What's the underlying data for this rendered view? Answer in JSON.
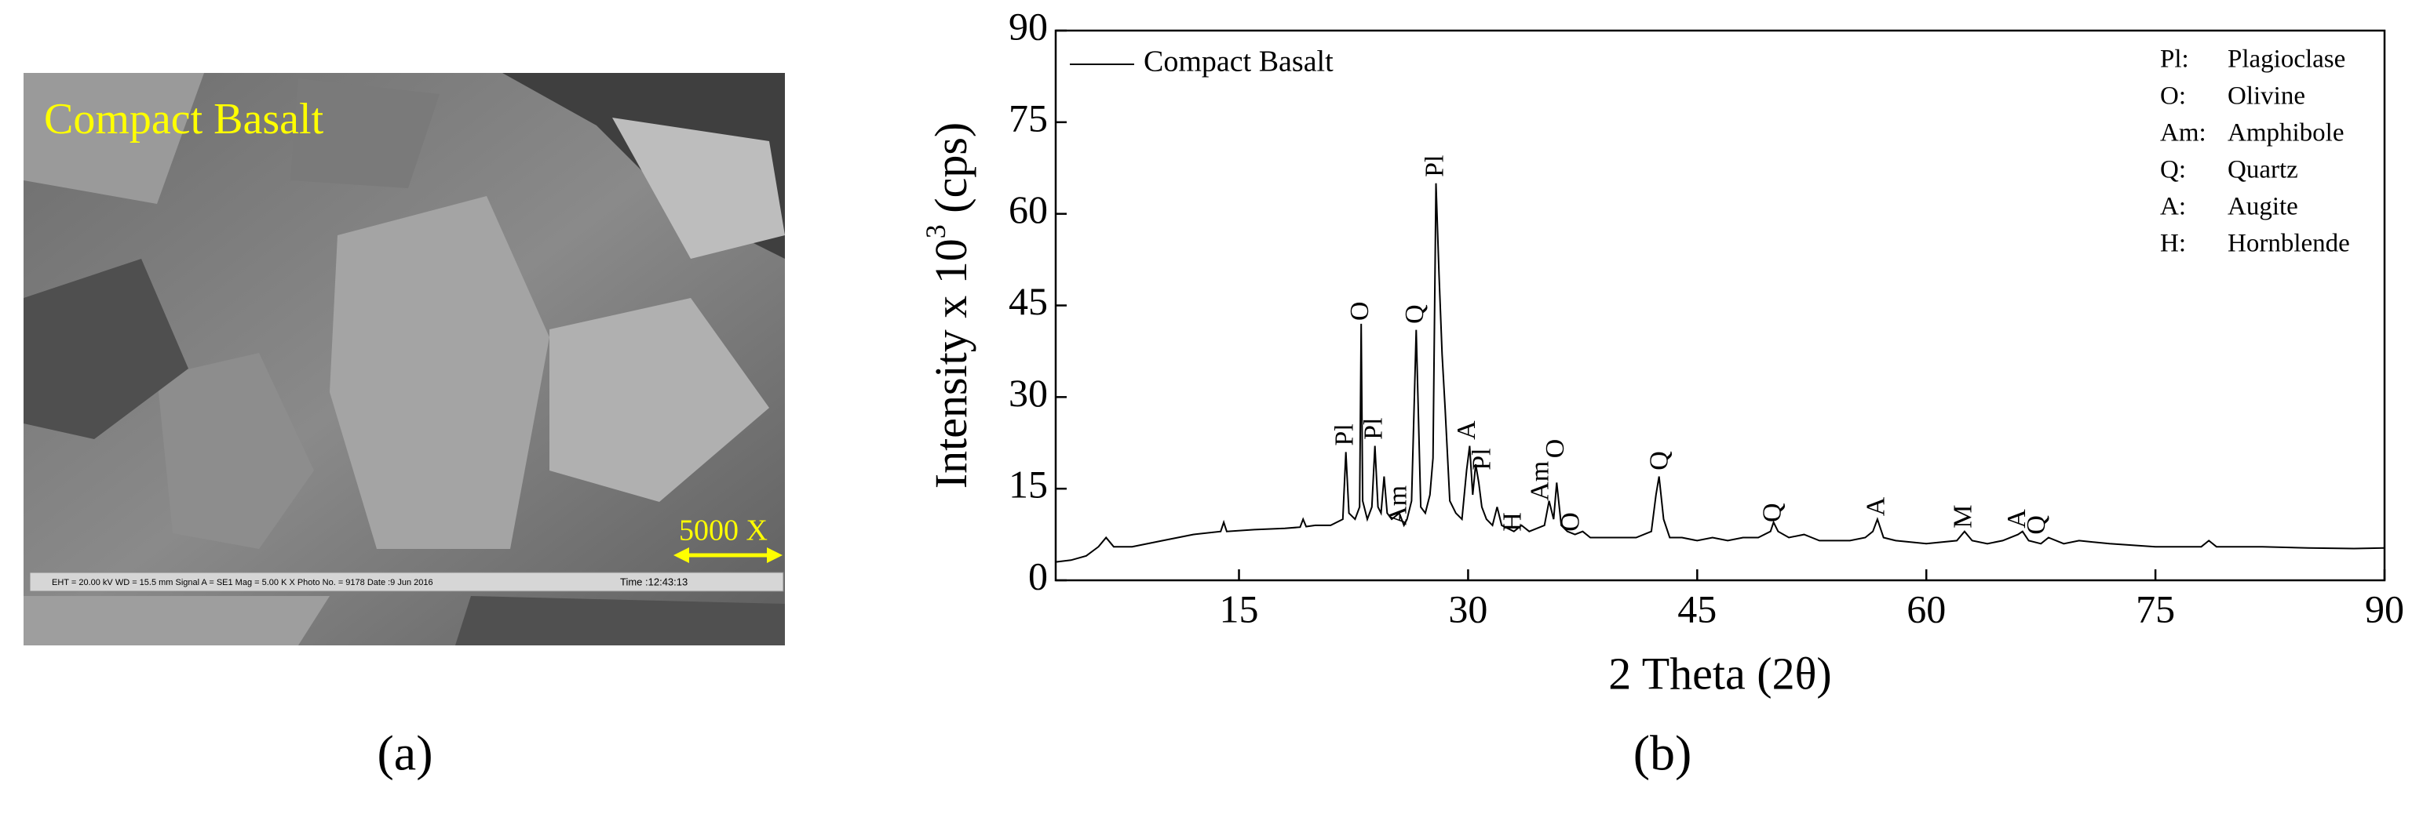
{
  "image_panel": {
    "caption": "(a)",
    "overlay_text": "Compact Basalt",
    "scale_text": "5000 X",
    "info_bar": "EHT = 20.00 kV   WD = 15.5 mm   Signal A = SE1   Mag = 5.00 K X   Photo No. = 9178   Date :9 Jun 2016",
    "info_time": "Time :12:43:13"
  },
  "chart_caption": "(b)",
  "chart_data": {
    "type": "line",
    "xlabel": "2 Theta (2θ)",
    "ylabel": [
      "Intensity x 10",
      "3",
      " (cps)"
    ],
    "x": [
      3,
      4,
      5,
      5.8,
      6.3,
      6.8,
      8,
      10,
      12,
      13.8,
      14,
      14.2,
      16,
      18,
      19,
      19.2,
      19.4,
      20,
      21,
      21.8,
      22,
      22.2,
      22.6,
      22.9,
      23.0,
      23.1,
      23.4,
      23.7,
      23.9,
      24.1,
      24.3,
      24.5,
      24.7,
      25,
      25.5,
      25.8,
      26,
      26.3,
      26.6,
      26.9,
      27.2,
      27.5,
      27.7,
      27.9,
      28.1,
      28.3,
      28.5,
      28.8,
      29.2,
      29.6,
      29.9,
      30.1,
      30.3,
      30.5,
      30.7,
      30.9,
      31.2,
      31.6,
      31.9,
      32.2,
      33,
      33.5,
      34,
      34.5,
      35,
      35.3,
      35.6,
      35.8,
      36.1,
      36.5,
      37,
      37.5,
      38,
      39,
      40,
      41,
      42,
      42.3,
      42.5,
      42.8,
      43.2,
      44,
      45,
      46,
      47,
      48,
      49,
      49.8,
      50,
      50.3,
      51,
      52,
      52.5,
      53,
      54,
      55,
      56,
      56.5,
      56.8,
      57.2,
      58,
      60,
      62,
      62.5,
      63,
      64,
      65,
      66,
      66.3,
      66.7,
      67.5,
      68,
      69,
      70,
      72,
      75,
      78,
      78.5,
      79,
      82,
      85,
      88,
      90
    ],
    "series": [
      {
        "name": "Compact Basalt",
        "color": "#000000",
        "values": [
          3,
          3.3,
          4,
          5.5,
          7,
          5.5,
          5.5,
          6.5,
          7.5,
          8,
          9.5,
          8,
          8.3,
          8.5,
          8.7,
          10,
          8.8,
          9,
          9,
          10,
          21,
          11,
          10,
          12,
          42,
          13,
          10,
          12,
          22,
          12,
          11,
          17,
          11,
          10,
          11,
          9,
          10,
          13,
          41,
          12,
          11,
          14,
          20,
          65,
          50,
          37,
          28,
          13,
          11,
          10,
          18,
          22,
          14,
          19,
          16,
          12,
          10,
          9,
          12,
          9,
          8,
          9,
          8,
          8.5,
          9,
          13,
          10,
          16,
          9,
          8,
          7.5,
          8,
          7,
          7,
          7,
          7,
          8,
          14,
          17,
          10,
          7,
          7,
          6.5,
          7,
          6.5,
          7,
          7,
          8,
          9.5,
          8,
          7,
          7.5,
          7,
          6.5,
          6.5,
          6.5,
          7,
          8,
          10,
          7,
          6.5,
          6,
          6.5,
          8,
          6.5,
          6,
          6.5,
          7.5,
          8,
          6.5,
          6,
          7,
          6,
          6.5,
          6,
          5.5,
          5.5,
          6.5,
          5.5,
          5.5,
          5.3,
          5.2,
          5.3
        ]
      }
    ],
    "xlim": [
      3,
      90
    ],
    "ylim": [
      0,
      90
    ],
    "xticks": [
      15,
      30,
      45,
      60,
      75,
      90
    ],
    "yticks": [
      0,
      15,
      30,
      45,
      60,
      75,
      90
    ],
    "legend": "upper left",
    "annotations": [
      {
        "text": "Pl",
        "x": 22,
        "y": 22
      },
      {
        "text": "O",
        "x": 23,
        "y": 42.5
      },
      {
        "text": "Pl",
        "x": 23.9,
        "y": 23
      },
      {
        "text": "Am",
        "x": 25.5,
        "y": 9
      },
      {
        "text": "Q",
        "x": 26.6,
        "y": 42
      },
      {
        "text": "Pl",
        "x": 27.9,
        "y": 66
      },
      {
        "text": "A",
        "x": 30,
        "y": 23
      },
      {
        "text": "Pl",
        "x": 31,
        "y": 18
      },
      {
        "text": "H",
        "x": 33,
        "y": 8
      },
      {
        "text": "Am",
        "x": 34.8,
        "y": 13
      },
      {
        "text": "O",
        "x": 35.8,
        "y": 20
      },
      {
        "text": "O",
        "x": 36.8,
        "y": 8
      },
      {
        "text": "Q",
        "x": 42.6,
        "y": 18
      },
      {
        "text": "Q",
        "x": 50,
        "y": 9.5
      },
      {
        "text": "A",
        "x": 56.8,
        "y": 10.5
      },
      {
        "text": "M",
        "x": 62.5,
        "y": 8.5
      },
      {
        "text": "A",
        "x": 66,
        "y": 8.5
      },
      {
        "text": "Q",
        "x": 67.3,
        "y": 7.5
      }
    ],
    "mineral_key": [
      {
        "code": "Pl:",
        "name": "Plagioclase"
      },
      {
        "code": "O:",
        "name": "Olivine"
      },
      {
        "code": "Am:",
        "name": "Amphibole"
      },
      {
        "code": "Q:",
        "name": "Quartz"
      },
      {
        "code": "A:",
        "name": "Augite"
      },
      {
        "code": "H:",
        "name": "Hornblende"
      }
    ]
  }
}
